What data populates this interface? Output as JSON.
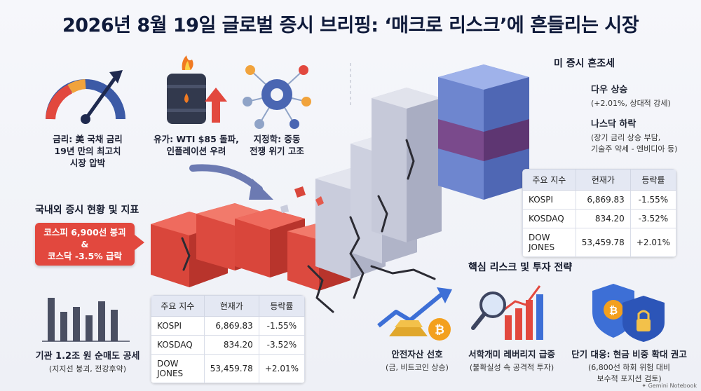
{
  "title": "2026년 8월 19일 글로벌 증시 브리핑: ‘매크로 리스크’에 흔들리는 시장",
  "factors": [
    {
      "icon": "gauge-arrow-icon",
      "caption_line1": "금리: 美 국채 금리",
      "caption_line2": "19년 만의 최고치",
      "caption_line3": "시장 압박"
    },
    {
      "icon": "oil-barrel-icon",
      "caption_line1": "유가: WTI $85 돌파,",
      "caption_line2": "인플레이션 우려"
    },
    {
      "icon": "gears-icon",
      "caption_line1": "지정학: 중동",
      "caption_line2": "전쟁 위기 고조"
    }
  ],
  "domestic": {
    "section_title": "국내외 증시 현황 및 지표",
    "alert_line1": "코스피 6,900선 붕괴",
    "alert_line2": "&",
    "alert_line3": "코스닥 -3.5% 급락",
    "institution_line1": "기관 1.2조 원 순매도 공세",
    "institution_line2": "(지지선 붕괴, 전강후약)"
  },
  "us_market": {
    "section_title": "미 증시 혼조세",
    "dow_title": "다우 상승",
    "dow_sub": "(+2.01%, 상대적 강세)",
    "nasdaq_title": "나스닥 하락",
    "nasdaq_sub1": "(장기 금리 상승 부담,",
    "nasdaq_sub2": "기술주 약세 - 엔비디아 등)"
  },
  "table": {
    "headers": [
      "주요 지수",
      "현재가",
      "등락률"
    ],
    "rows": [
      {
        "name": "KOSPI",
        "price": "6,869.83",
        "change": "-1.55%",
        "dir": "neg"
      },
      {
        "name": "KOSDAQ",
        "price": "834.20",
        "change": "-3.52%",
        "dir": "neg"
      },
      {
        "name": "DOW JONES",
        "price": "53,459.78",
        "change": "+2.01%",
        "dir": "pos"
      }
    ]
  },
  "strategy": {
    "section_title": "핵심 리스크 및 투자 전략",
    "items": [
      {
        "icon": "gold-bitcoin-icon",
        "line1": "안전자산 선호",
        "line2": "(금, 비트코인 상승)"
      },
      {
        "icon": "magnifier-chart-icon",
        "line1": "서학개미 레버리지 급증",
        "line2": "(불확실성 속 공격적 투자)"
      },
      {
        "icon": "shield-lock-icon",
        "line1": "단기 대응: 현금 비중 확대 권고",
        "line2": "(6,800선 하회 위험 대비",
        "line3": "보수적 포지션 검토)"
      }
    ]
  },
  "footer": "Gemini Notebook",
  "colors": {
    "red": "#e2483e",
    "blue": "#3762c8",
    "navy": "#0f1a3a",
    "purple": "#7a4a8c"
  }
}
